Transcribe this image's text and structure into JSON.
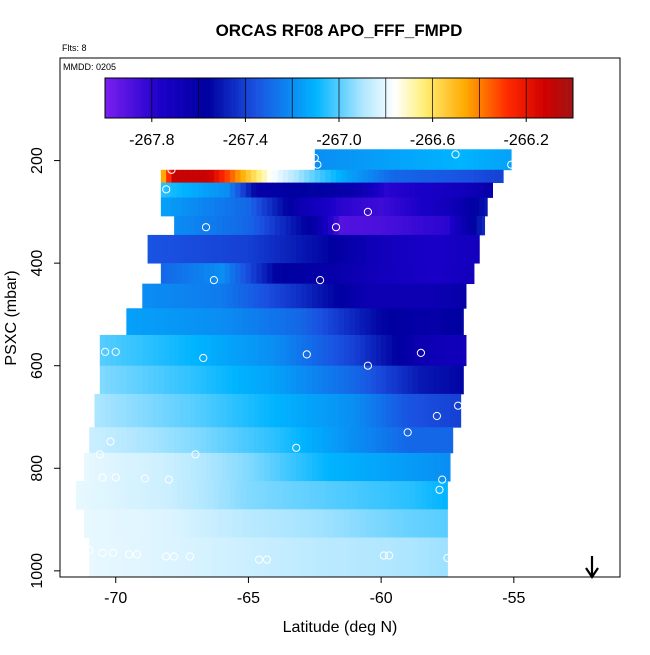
{
  "chart_data": {
    "type": "heatmap",
    "title": "ORCAS RF08 APO_FFF_FMPD",
    "subtitle_flts": "Flts: 8",
    "annotation_mmdd": "MMDD: 0205",
    "xlabel": "Latitude (deg N)",
    "ylabel": "PSXC (mbar)",
    "xlim": [
      -72.1,
      -51.0
    ],
    "ylim": [
      1012,
      0
    ],
    "x_ticks": [
      -70,
      -65,
      -60,
      -55
    ],
    "x_tick_labels": [
      "-70",
      "-65",
      "-60",
      "-55"
    ],
    "y_ticks": [
      200,
      400,
      600,
      800,
      1000
    ],
    "y_tick_labels": [
      "200",
      "400",
      "600",
      "800",
      "1000"
    ],
    "colorbar": {
      "range": [
        -268.0,
        -266.0
      ],
      "ticks": [
        -267.8,
        -267.4,
        -267.0,
        -266.6,
        -266.2
      ],
      "tick_labels": [
        "-267.8",
        "-267.4",
        "-267.0",
        "-266.6",
        "-266.2"
      ],
      "stops": [
        [
          0.0,
          "#7a1ff0"
        ],
        [
          0.12,
          "#1a00c8"
        ],
        [
          0.22,
          "#0000a0"
        ],
        [
          0.32,
          "#1a50e0"
        ],
        [
          0.45,
          "#00b4ff"
        ],
        [
          0.55,
          "#aee6ff"
        ],
        [
          0.62,
          "#ffffff"
        ],
        [
          0.68,
          "#fff07a"
        ],
        [
          0.77,
          "#ffaa00"
        ],
        [
          0.86,
          "#ff2a00"
        ],
        [
          0.94,
          "#d00000"
        ],
        [
          1.0,
          "#a01414"
        ]
      ]
    },
    "bands": [
      {
        "p_top": 178,
        "p_bot": 218,
        "lat_min": -62.5,
        "lat_max": -55.1,
        "values": [
          [
            -62.5,
            -267.2
          ],
          [
            -57,
            -267.1
          ],
          [
            -55.1,
            -267.15
          ]
        ]
      },
      {
        "p_top": 218,
        "p_bot": 243,
        "lat_min": -68.3,
        "lat_max": -55.4,
        "values": [
          [
            -68.3,
            -266.55
          ],
          [
            -67.8,
            -266.1
          ],
          [
            -66.5,
            -266.1
          ],
          [
            -65.5,
            -266.4
          ],
          [
            -64.2,
            -266.75
          ],
          [
            -62.5,
            -267.0
          ],
          [
            -61.2,
            -267.15
          ],
          [
            -59.5,
            -267.3
          ],
          [
            -57,
            -267.35
          ],
          [
            -55.4,
            -267.4
          ]
        ]
      },
      {
        "p_top": 243,
        "p_bot": 272,
        "lat_min": -68.3,
        "lat_max": -55.8,
        "values": [
          [
            -68.3,
            -267.05
          ],
          [
            -65.8,
            -267.2
          ],
          [
            -64.6,
            -267.6
          ],
          [
            -62.5,
            -267.55
          ],
          [
            -60.8,
            -267.65
          ],
          [
            -59.8,
            -267.8
          ],
          [
            -57,
            -267.7
          ],
          [
            -55.8,
            -267.6
          ]
        ]
      },
      {
        "p_top": 272,
        "p_bot": 308,
        "lat_min": -68.3,
        "lat_max": -56.0,
        "values": [
          [
            -68.3,
            -267.15
          ],
          [
            -65,
            -267.3
          ],
          [
            -63,
            -267.65
          ],
          [
            -61.5,
            -267.8
          ],
          [
            -60,
            -267.85
          ],
          [
            -57.5,
            -267.7
          ],
          [
            -56,
            -267.5
          ]
        ]
      },
      {
        "p_top": 308,
        "p_bot": 345,
        "lat_min": -67.8,
        "lat_max": -56.1,
        "values": [
          [
            -67.8,
            -267.2
          ],
          [
            -65,
            -267.3
          ],
          [
            -62.5,
            -267.6
          ],
          [
            -61.5,
            -267.9
          ],
          [
            -60,
            -267.88
          ],
          [
            -57.5,
            -267.8
          ],
          [
            -56.1,
            -267.45
          ]
        ]
      },
      {
        "p_top": 345,
        "p_bot": 400,
        "lat_min": -68.8,
        "lat_max": -56.3,
        "values": [
          [
            -68.8,
            -267.35
          ],
          [
            -65,
            -267.4
          ],
          [
            -62,
            -267.55
          ],
          [
            -60,
            -267.7
          ],
          [
            -58,
            -267.75
          ],
          [
            -56.3,
            -267.7
          ]
        ]
      },
      {
        "p_top": 400,
        "p_bot": 440,
        "lat_min": -68.3,
        "lat_max": -56.5,
        "values": [
          [
            -68.3,
            -267.3
          ],
          [
            -66,
            -267.2
          ],
          [
            -64,
            -267.55
          ],
          [
            -62,
            -267.6
          ],
          [
            -60,
            -267.7
          ],
          [
            -58,
            -267.75
          ],
          [
            -56.5,
            -267.7
          ]
        ]
      },
      {
        "p_top": 440,
        "p_bot": 488,
        "lat_min": -69.0,
        "lat_max": -56.8,
        "values": [
          [
            -69,
            -267.2
          ],
          [
            -66,
            -267.25
          ],
          [
            -63,
            -267.45
          ],
          [
            -60.5,
            -267.65
          ],
          [
            -58,
            -267.65
          ],
          [
            -56.8,
            -267.6
          ]
        ]
      },
      {
        "p_top": 488,
        "p_bot": 540,
        "lat_min": -69.6,
        "lat_max": -56.9,
        "values": [
          [
            -69.6,
            -267.15
          ],
          [
            -66,
            -267.2
          ],
          [
            -63,
            -267.3
          ],
          [
            -60,
            -267.55
          ],
          [
            -58,
            -267.6
          ],
          [
            -56.9,
            -267.55
          ]
        ]
      },
      {
        "p_top": 540,
        "p_bot": 600,
        "lat_min": -70.6,
        "lat_max": -56.8,
        "values": [
          [
            -70.6,
            -267.0
          ],
          [
            -67,
            -267.1
          ],
          [
            -64,
            -267.2
          ],
          [
            -61,
            -267.4
          ],
          [
            -58.5,
            -267.65
          ],
          [
            -56.8,
            -267.7
          ]
        ]
      },
      {
        "p_top": 600,
        "p_bot": 655,
        "lat_min": -70.6,
        "lat_max": -56.9,
        "values": [
          [
            -70.6,
            -266.95
          ],
          [
            -67,
            -267.05
          ],
          [
            -64,
            -267.15
          ],
          [
            -61,
            -267.3
          ],
          [
            -58.5,
            -267.5
          ],
          [
            -56.9,
            -267.55
          ]
        ]
      },
      {
        "p_top": 655,
        "p_bot": 720,
        "lat_min": -70.8,
        "lat_max": -57.0,
        "values": [
          [
            -70.8,
            -266.9
          ],
          [
            -67,
            -267.0
          ],
          [
            -64,
            -267.1
          ],
          [
            -61,
            -267.2
          ],
          [
            -59,
            -267.35
          ],
          [
            -57,
            -267.4
          ]
        ]
      },
      {
        "p_top": 720,
        "p_bot": 770,
        "lat_min": -71.0,
        "lat_max": -57.3,
        "values": [
          [
            -71,
            -266.85
          ],
          [
            -67,
            -266.95
          ],
          [
            -64,
            -267.05
          ],
          [
            -61,
            -267.2
          ],
          [
            -59,
            -267.3
          ],
          [
            -57.3,
            -267.3
          ]
        ]
      },
      {
        "p_top": 770,
        "p_bot": 825,
        "lat_min": -71.2,
        "lat_max": -57.4,
        "values": [
          [
            -71.2,
            -266.8
          ],
          [
            -68,
            -266.85
          ],
          [
            -65,
            -266.95
          ],
          [
            -62,
            -267.1
          ],
          [
            -59.5,
            -267.15
          ],
          [
            -57.4,
            -267.2
          ]
        ]
      },
      {
        "p_top": 825,
        "p_bot": 880,
        "lat_min": -71.5,
        "lat_max": -57.5,
        "values": [
          [
            -71.5,
            -266.8
          ],
          [
            -68,
            -266.85
          ],
          [
            -65,
            -266.95
          ],
          [
            -62,
            -267.0
          ],
          [
            -59,
            -267.05
          ],
          [
            -57.5,
            -267.1
          ]
        ]
      },
      {
        "p_top": 880,
        "p_bot": 935,
        "lat_min": -71.2,
        "lat_max": -57.5,
        "values": [
          [
            -71.2,
            -266.8
          ],
          [
            -68,
            -266.82
          ],
          [
            -65,
            -266.88
          ],
          [
            -62,
            -266.92
          ],
          [
            -59,
            -266.98
          ],
          [
            -57.5,
            -267.0
          ]
        ]
      },
      {
        "p_top": 935,
        "p_bot": 1012,
        "lat_min": -71.0,
        "lat_max": -57.5,
        "values": [
          [
            -71,
            -266.8
          ],
          [
            -68,
            -266.82
          ],
          [
            -65,
            -266.85
          ],
          [
            -62,
            -266.88
          ],
          [
            -59,
            -266.9
          ],
          [
            -57.5,
            -266.92
          ]
        ]
      }
    ],
    "points": [
      [
        -62.5,
        195
      ],
      [
        -62.4,
        208
      ],
      [
        -57.2,
        188
      ],
      [
        -55.1,
        208
      ],
      [
        -67.9,
        218
      ],
      [
        -68.1,
        256
      ],
      [
        -68.5,
        298
      ],
      [
        -60.5,
        300
      ],
      [
        -66.6,
        330
      ],
      [
        -61.7,
        330
      ],
      [
        -56.0,
        362
      ],
      [
        -69.0,
        375
      ],
      [
        -66.3,
        433
      ],
      [
        -62.3,
        433
      ],
      [
        -56.6,
        553
      ],
      [
        -70.4,
        573
      ],
      [
        -70.0,
        573
      ],
      [
        -66.7,
        585
      ],
      [
        -62.8,
        578
      ],
      [
        -58.5,
        575
      ],
      [
        -60.5,
        600
      ],
      [
        -57.1,
        678
      ],
      [
        -57.9,
        698
      ],
      [
        -59.0,
        730
      ],
      [
        -70.2,
        748
      ],
      [
        -63.2,
        760
      ],
      [
        -67.0,
        773
      ],
      [
        -70.6,
        773
      ],
      [
        -57.7,
        822
      ],
      [
        -70.5,
        818
      ],
      [
        -70.0,
        818
      ],
      [
        -68.9,
        820
      ],
      [
        -68.0,
        822
      ],
      [
        -57.8,
        842
      ],
      [
        -71.0,
        960
      ],
      [
        -70.5,
        965
      ],
      [
        -70.1,
        965
      ],
      [
        -69.5,
        968
      ],
      [
        -69.2,
        968
      ],
      [
        -68.1,
        972
      ],
      [
        -67.8,
        972
      ],
      [
        -67.2,
        972
      ],
      [
        -64.6,
        978
      ],
      [
        -64.3,
        978
      ],
      [
        -59.9,
        970
      ],
      [
        -59.7,
        970
      ],
      [
        -57.5,
        975
      ]
    ],
    "marker_arrow": "down-arrow-marker"
  }
}
